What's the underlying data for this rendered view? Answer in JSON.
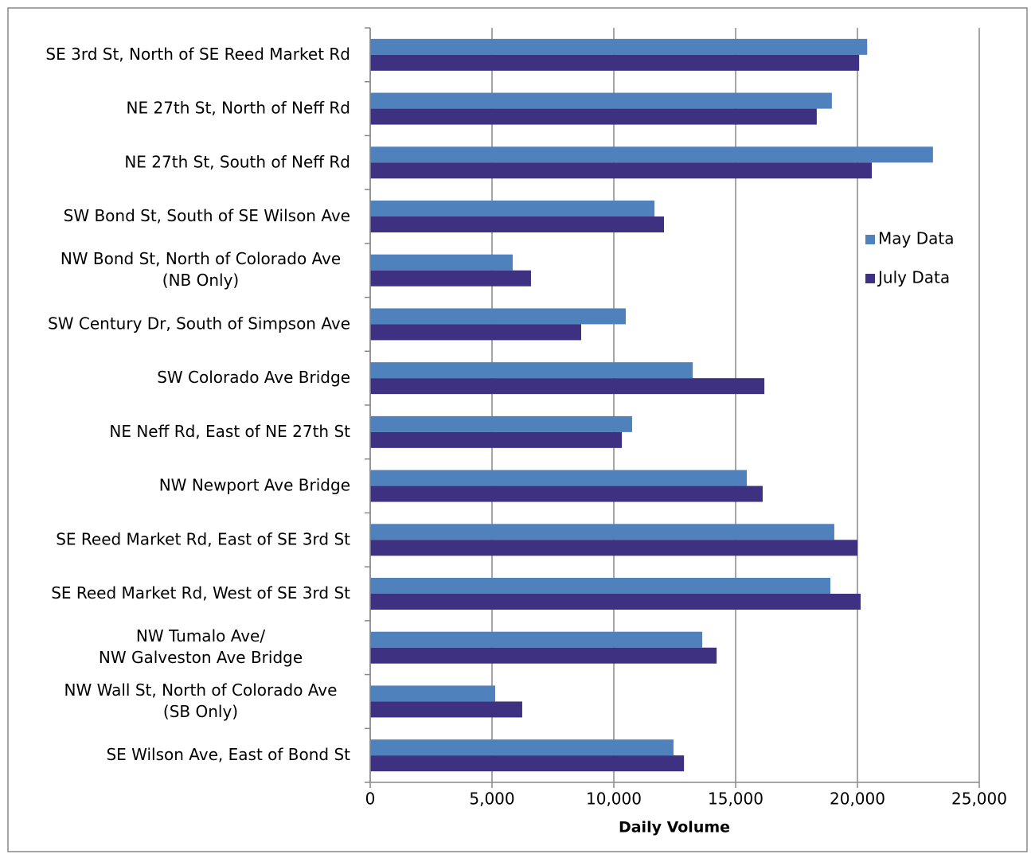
{
  "chart_data": {
    "type": "hbar",
    "x_label": "Daily Volume",
    "categories": [
      [
        "SE 3rd St, North of SE Reed Market Rd"
      ],
      [
        "NE 27th St, North of Neff Rd"
      ],
      [
        "NE 27th St, South of Neff Rd"
      ],
      [
        "SW Bond St, South of SE Wilson Ave"
      ],
      [
        "NW Bond St, North of Colorado Ave",
        "(NB Only)"
      ],
      [
        "SW Century Dr, South of Simpson Ave"
      ],
      [
        "SW Colorado Ave Bridge"
      ],
      [
        "NE Neff Rd, East of NE 27th St"
      ],
      [
        "NW Newport Ave Bridge"
      ],
      [
        "SE Reed Market Rd, East of SE 3rd St"
      ],
      [
        "SE Reed Market Rd, West of SE 3rd St"
      ],
      [
        "NW Tumalo Ave/",
        "NW Galveston Ave Bridge"
      ],
      [
        "NW Wall St, North of Colorado Ave",
        "(SB Only)"
      ],
      [
        "SE Wilson Ave, East of Bond St"
      ]
    ],
    "series": [
      {
        "name": "May Data",
        "color": "#4f81bd",
        "values": [
          20400,
          18950,
          23100,
          11670,
          5850,
          10490,
          13240,
          10750,
          15460,
          19050,
          18890,
          13630,
          5130,
          12450
        ]
      },
      {
        "name": "July Data",
        "color": "#3f3182",
        "values": [
          20070,
          18330,
          20590,
          12060,
          6600,
          8660,
          16180,
          10330,
          16110,
          20000,
          20130,
          14220,
          6240,
          12880
        ]
      }
    ],
    "xlim": [
      0,
      25000
    ],
    "xticks": [
      0,
      {
        "value": 5000,
        "label": "5,000"
      },
      {
        "value": 10000,
        "label": "10,000"
      },
      {
        "value": 15000,
        "label": "15,000"
      },
      {
        "value": 20000,
        "label": "20,000"
      },
      {
        "value": 25000,
        "label": "25,000"
      }
    ],
    "grid": true,
    "legend": "right"
  }
}
